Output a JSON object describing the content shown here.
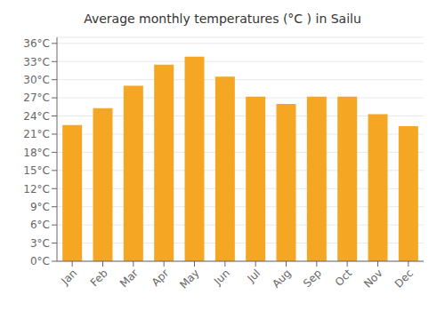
{
  "chart_data": {
    "type": "bar",
    "title": "Average monthly temperatures (°C ) in Sailu",
    "categories": [
      "Jan",
      "Feb",
      "Mar",
      "Apr",
      "May",
      "Jun",
      "Jul",
      "Aug",
      "Sep",
      "Oct",
      "Nov",
      "Dec"
    ],
    "values": [
      22.5,
      25.3,
      29.0,
      32.5,
      33.8,
      30.5,
      27.2,
      26.0,
      27.2,
      27.2,
      24.3,
      22.3
    ],
    "color": "#F5A623",
    "ylim": [
      0,
      37
    ],
    "yticks": [
      {
        "value": 0,
        "label": "0°C"
      },
      {
        "value": 3,
        "label": "3°C"
      },
      {
        "value": 6,
        "label": "6°C"
      },
      {
        "value": 9,
        "label": "9°C"
      },
      {
        "value": 12,
        "label": "12°C"
      },
      {
        "value": 15,
        "label": "15°C"
      },
      {
        "value": 18,
        "label": "18°C"
      },
      {
        "value": 21,
        "label": "21°C"
      },
      {
        "value": 24,
        "label": "24°C"
      },
      {
        "value": 27,
        "label": "27°C"
      },
      {
        "value": 30,
        "label": "30°C"
      },
      {
        "value": 33,
        "label": "33°C"
      },
      {
        "value": 36,
        "label": "36°C"
      }
    ],
    "grid": true
  }
}
